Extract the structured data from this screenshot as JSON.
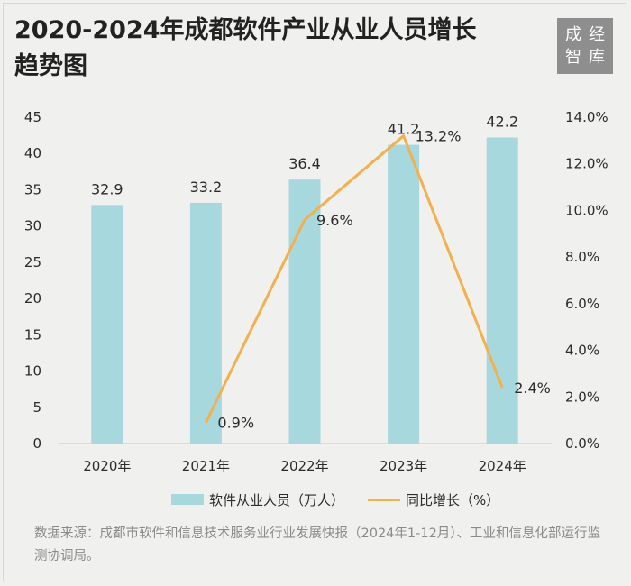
{
  "title_lines": [
    "2020-2024年成都软件产业从业人员增长",
    "趋势图"
  ],
  "logo": {
    "chars": [
      "成",
      "经",
      "智",
      "库"
    ]
  },
  "source_note": "数据来源：成都市软件和信息技术服务业行业发展快报（2024年1-12月）、工业和信息化部运行监测协调局。",
  "colors": {
    "bar": "#a7d8de",
    "line": "#f2b04f",
    "axis": "#c8c8c8"
  },
  "chart_data": {
    "type": "bar",
    "categories": [
      "2020年",
      "2021年",
      "2022年",
      "2023年",
      "2024年"
    ],
    "series": [
      {
        "name": "软件从业人员（万人）",
        "type": "bar",
        "axis": "left",
        "values": [
          32.9,
          33.2,
          36.4,
          41.2,
          42.2
        ],
        "labels": [
          "32.9",
          "33.2",
          "36.4",
          "41.2",
          "42.2"
        ]
      },
      {
        "name": "同比增长（%）",
        "type": "line",
        "axis": "right",
        "values": [
          null,
          0.9,
          9.6,
          13.2,
          2.4
        ],
        "labels": [
          "",
          "0.9%",
          "9.6%",
          "13.2%",
          "2.4%"
        ]
      }
    ],
    "y_left": {
      "range": [
        0,
        45
      ],
      "ticks": [
        "0",
        "5",
        "10",
        "15",
        "20",
        "25",
        "30",
        "35",
        "40",
        "45"
      ]
    },
    "y_right": {
      "range": [
        0,
        14
      ],
      "ticks": [
        "0.0%",
        "2.0%",
        "4.0%",
        "6.0%",
        "8.0%",
        "10.0%",
        "12.0%",
        "14.0%"
      ]
    },
    "legend_position": "bottom",
    "grid": false
  }
}
